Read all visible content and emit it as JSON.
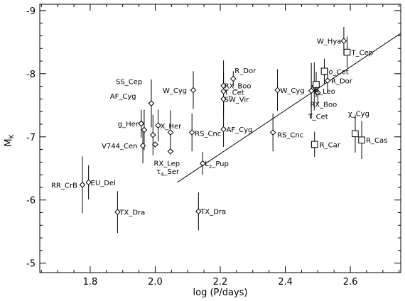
{
  "chart_data": {
    "type": "scatter",
    "title": "",
    "xlabel": "log (P/days)",
    "ylabel": "M",
    "ylabel_sub": "K",
    "xlim": [
      1.645,
      2.755
    ],
    "ylim": [
      -4.85,
      -9.1
    ],
    "y_inverted": true,
    "grid": false,
    "xticks": [
      1.8,
      2.0,
      2.2,
      2.4,
      2.6
    ],
    "xtick_labels": [
      "1.8",
      "2.0",
      "2.2",
      "2.4",
      "2.6"
    ],
    "yticks": [
      -9,
      -8,
      -7,
      -6,
      -5
    ],
    "ytick_labels": [
      "-9",
      "-8",
      "-7",
      "-6",
      "-5"
    ],
    "fit_line": {
      "x": [
        2.068,
        2.755
      ],
      "y": [
        -6.28,
        -8.64
      ]
    },
    "series": [
      {
        "marker": "diamond",
        "points": [
          {
            "label": "RR_CrB",
            "x": 1.776,
            "y": -6.24,
            "yerr": 0.45
          },
          {
            "label": "EU_Del",
            "x": 1.795,
            "y": -6.28,
            "yerr": 0.27
          },
          {
            "label": "TX_Dra",
            "x": 1.884,
            "y": -5.81,
            "yerr": 0.33
          },
          {
            "label": "SS_Cep",
            "x": 1.988,
            "y": -7.53,
            "yerr": 0.38
          },
          {
            "label": "AF_Cyg",
            "x": 1.957,
            "y": -7.21,
            "yerr": 0.22
          },
          {
            "label": "g_Her",
            "x": 1.957,
            "y": -7.21,
            "yerr": 0.0
          },
          {
            "label": "",
            "x": 1.966,
            "y": -7.11,
            "yerr": 0.32
          },
          {
            "label": "V744_Cen",
            "x": 1.962,
            "y": -6.86,
            "yerr": 0.28
          },
          {
            "label": "",
            "x": 1.993,
            "y": -7.03,
            "yerr": 0.32
          },
          {
            "label": "X_Her",
            "x": 2.009,
            "y": -7.18,
            "yerr": 0.25
          },
          {
            "label": "RX_Lep",
            "x": 2.0,
            "y": -6.88,
            "yerr": 0.0
          },
          {
            "label": "",
            "x": 2.047,
            "y": -7.07,
            "yerr": 0.35
          },
          {
            "label": "τ4_Ser",
            "x": 2.047,
            "y": -6.77,
            "yerr": 0.0
          },
          {
            "label": "W_Cyg",
            "x": 2.117,
            "y": -7.74,
            "yerr": 0.3
          },
          {
            "label": "RS_Cnc",
            "x": 2.113,
            "y": -7.07,
            "yerr": 0.3
          },
          {
            "label": "L2_Pup",
            "x": 2.146,
            "y": -6.58,
            "yerr": 0.18
          },
          {
            "label": "TX_Dra",
            "x": 2.133,
            "y": -5.82,
            "yerr": 0.3
          },
          {
            "label": "R_Dor",
            "x": 2.24,
            "y": -7.92,
            "yerr": 0.12
          },
          {
            "label": "RX_Boo",
            "x": 2.21,
            "y": -7.81,
            "yerr": 0.4
          },
          {
            "label": "T_Cet",
            "x": 2.21,
            "y": -7.72,
            "yerr": 0.3
          },
          {
            "label": "SW_Vir",
            "x": 2.21,
            "y": -7.6,
            "yerr": 0.3
          },
          {
            "label": "AF_Cyg",
            "x": 2.21,
            "y": -7.12,
            "yerr": 0.28
          },
          {
            "label": "RS_Cnc",
            "x": 2.362,
            "y": -7.07,
            "yerr": 0.3
          },
          {
            "label": "W_Cyg",
            "x": 2.376,
            "y": -7.74,
            "yerr": 0.33
          },
          {
            "label": "R_Leo",
            "x": 2.48,
            "y": -7.73,
            "yerr": 0.44
          },
          {
            "label": "RX_Boo",
            "x": 2.489,
            "y": -7.8,
            "yerr": 0.38
          },
          {
            "label": "T_Cet",
            "x": 2.5,
            "y": -7.7,
            "yerr": 0.18
          },
          {
            "label": "R_Dor",
            "x": 2.53,
            "y": -7.89,
            "yerr": 0.2
          },
          {
            "label": "W_Hya",
            "x": 2.58,
            "y": -8.52,
            "yerr": 0.22
          }
        ]
      },
      {
        "marker": "square",
        "points": [
          {
            "label": "T_Cep",
            "x": 2.59,
            "y": -8.34,
            "yerr": 0.25
          },
          {
            "label": "o_Cet",
            "x": 2.52,
            "y": -8.04,
            "yerr": 0.2
          },
          {
            "label": "",
            "x": 2.495,
            "y": -7.83,
            "yerr": 0.2
          },
          {
            "label": "R_Car",
            "x": 2.49,
            "y": -6.88,
            "yerr": 0.2
          },
          {
            "label": "χ_Cyg",
            "x": 2.615,
            "y": -7.05,
            "yerr": 0.3
          },
          {
            "label": "R_Cas",
            "x": 2.635,
            "y": -6.95,
            "yerr": 0.3
          }
        ]
      }
    ]
  }
}
